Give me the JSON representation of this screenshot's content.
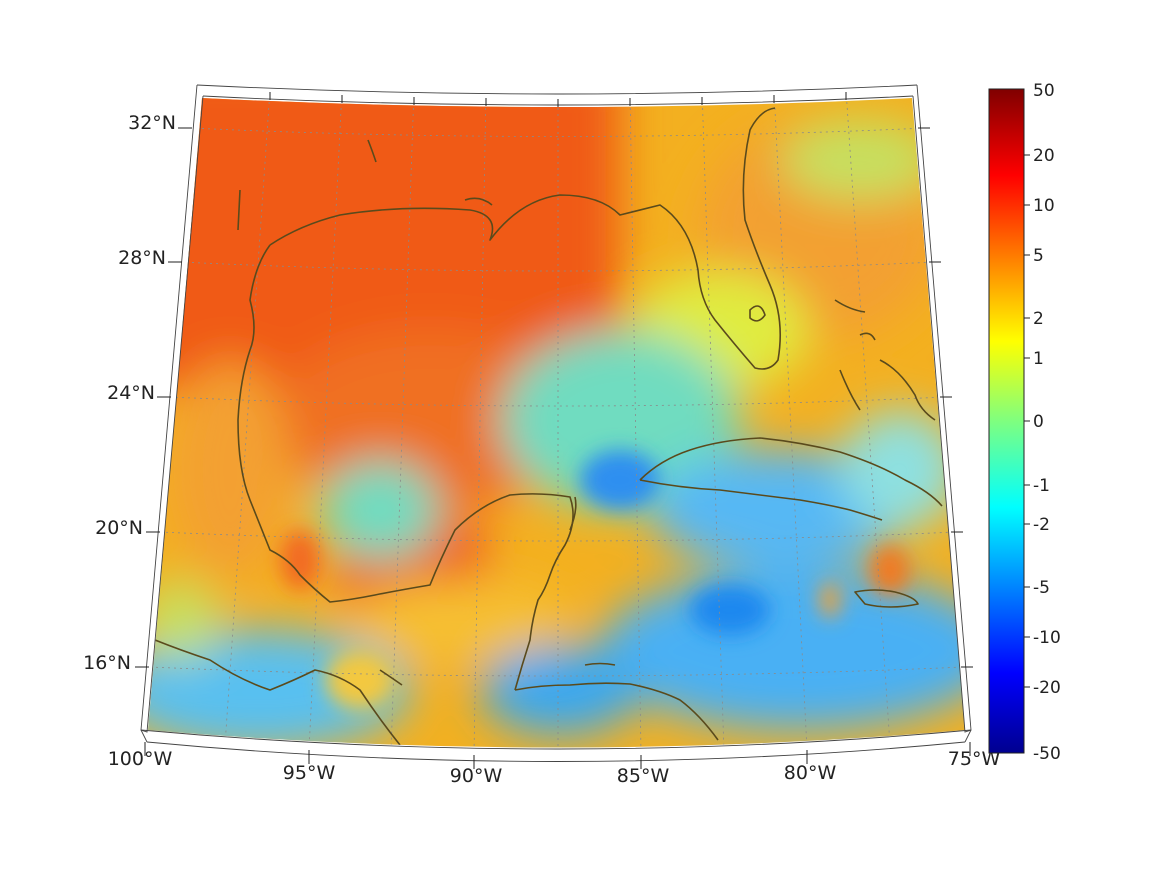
{
  "map": {
    "projection": "conic",
    "lat_labels": [
      "32°N",
      "28°N",
      "24°N",
      "20°N",
      "16°N"
    ],
    "lon_labels": [
      "100°W",
      "95°W",
      "90°W",
      "85°W",
      "80°W",
      "75°W"
    ],
    "coastline_color": "#5a4a1c",
    "graticule_style": "dotted"
  },
  "colorbar": {
    "colormap": "jet",
    "tick_labels": [
      "50",
      "20",
      "10",
      "5",
      "2",
      "1",
      "0",
      "-1",
      "-2",
      "-5",
      "-10",
      "-20",
      "-50"
    ]
  }
}
